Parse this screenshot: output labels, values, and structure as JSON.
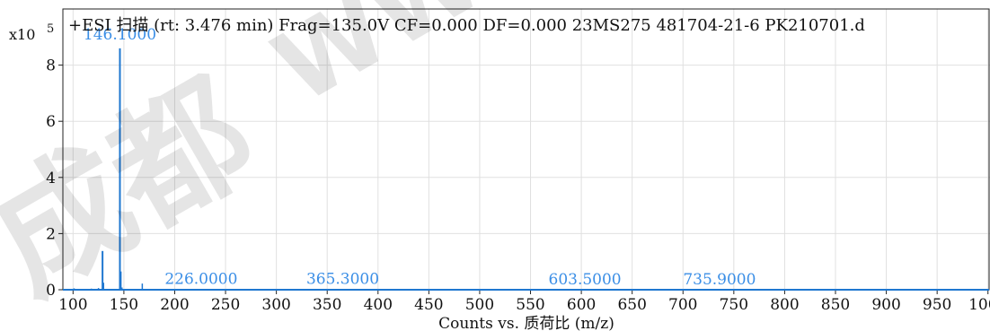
{
  "chart_data": {
    "type": "line",
    "title": "+ESI 扫描 (rt: 3.476 min) Frag=135.0V CF=0.000 DF=0.000 23MS275 481704-21-6 PK210701.d",
    "y_multiplier": "x10",
    "y_exponent": "5",
    "xlabel": "Counts vs. 质荷比 (m/z)",
    "ylabel": "",
    "xlim": [
      90,
      1002
    ],
    "ylim": [
      0,
      10
    ],
    "x_ticks": [
      100,
      150,
      200,
      250,
      300,
      350,
      400,
      450,
      500,
      550,
      600,
      650,
      700,
      750,
      800,
      850,
      900,
      950,
      1000
    ],
    "y_ticks": [
      0,
      2,
      4,
      6,
      8
    ],
    "grid": true,
    "series": [
      {
        "color": "#1f77d0",
        "peaks": [
          {
            "x": 101.0,
            "y": 0.05
          },
          {
            "x": 113.0,
            "y": 0.03
          },
          {
            "x": 118.0,
            "y": 0.04
          },
          {
            "x": 125.0,
            "y": 0.06
          },
          {
            "x": 129.0,
            "y": 1.38
          },
          {
            "x": 130.0,
            "y": 0.25
          },
          {
            "x": 146.1,
            "y": 8.6
          },
          {
            "x": 147.1,
            "y": 0.65
          },
          {
            "x": 148.1,
            "y": 0.08
          },
          {
            "x": 168.1,
            "y": 0.22
          },
          {
            "x": 226.0,
            "y": 0.02
          },
          {
            "x": 365.3,
            "y": 0.01
          },
          {
            "x": 603.5,
            "y": 0.005
          },
          {
            "x": 735.9,
            "y": 0.005
          }
        ]
      }
    ],
    "peak_labels": [
      {
        "x": 146.1,
        "y": 8.6,
        "text": "146.1000"
      },
      {
        "x": 226.0,
        "y": 0.02,
        "text": "226.0000"
      },
      {
        "x": 365.3,
        "y": 0.01,
        "text": "365.3000"
      },
      {
        "x": 603.5,
        "y": 0.005,
        "text": "603.5000"
      },
      {
        "x": 735.9,
        "y": 0.005,
        "text": "735.9000"
      }
    ]
  },
  "watermark": {
    "text_left": "成都",
    "text_right": "WW"
  }
}
